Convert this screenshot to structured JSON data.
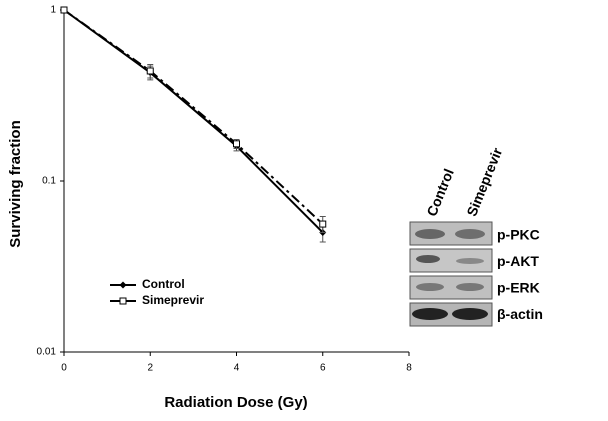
{
  "chart_data": {
    "type": "line",
    "x_label": "Radiation Dose (Gy)",
    "y_label": "Surviving fraction",
    "x": [
      0,
      2,
      4,
      6
    ],
    "series": [
      {
        "name": "Control",
        "color": "#000000",
        "line_style": "solid",
        "marker": "diamond",
        "values": [
          1,
          0.43,
          0.16,
          0.05
        ],
        "errors": [
          null,
          0.04,
          0.01,
          0.006
        ]
      },
      {
        "name": "Simeprevir",
        "color": "#000000",
        "line_style": "dashed",
        "marker": "square",
        "values": [
          1,
          0.44,
          0.165,
          0.056
        ],
        "errors": [
          null,
          0.04,
          0.01,
          0.006
        ]
      }
    ],
    "xlim": [
      0,
      8
    ],
    "xticks": [
      0,
      2,
      4,
      6,
      8
    ],
    "ylim": [
      0.01,
      1
    ],
    "yticks": [
      0.01,
      0.1,
      1
    ],
    "log_y": true,
    "grid": false,
    "legend": "lower-left"
  },
  "blot": {
    "columns": [
      "Control",
      "Simeprevir"
    ],
    "rows": [
      "p-PKC",
      "p-AKT",
      "p-ERK",
      "β-actin"
    ]
  }
}
